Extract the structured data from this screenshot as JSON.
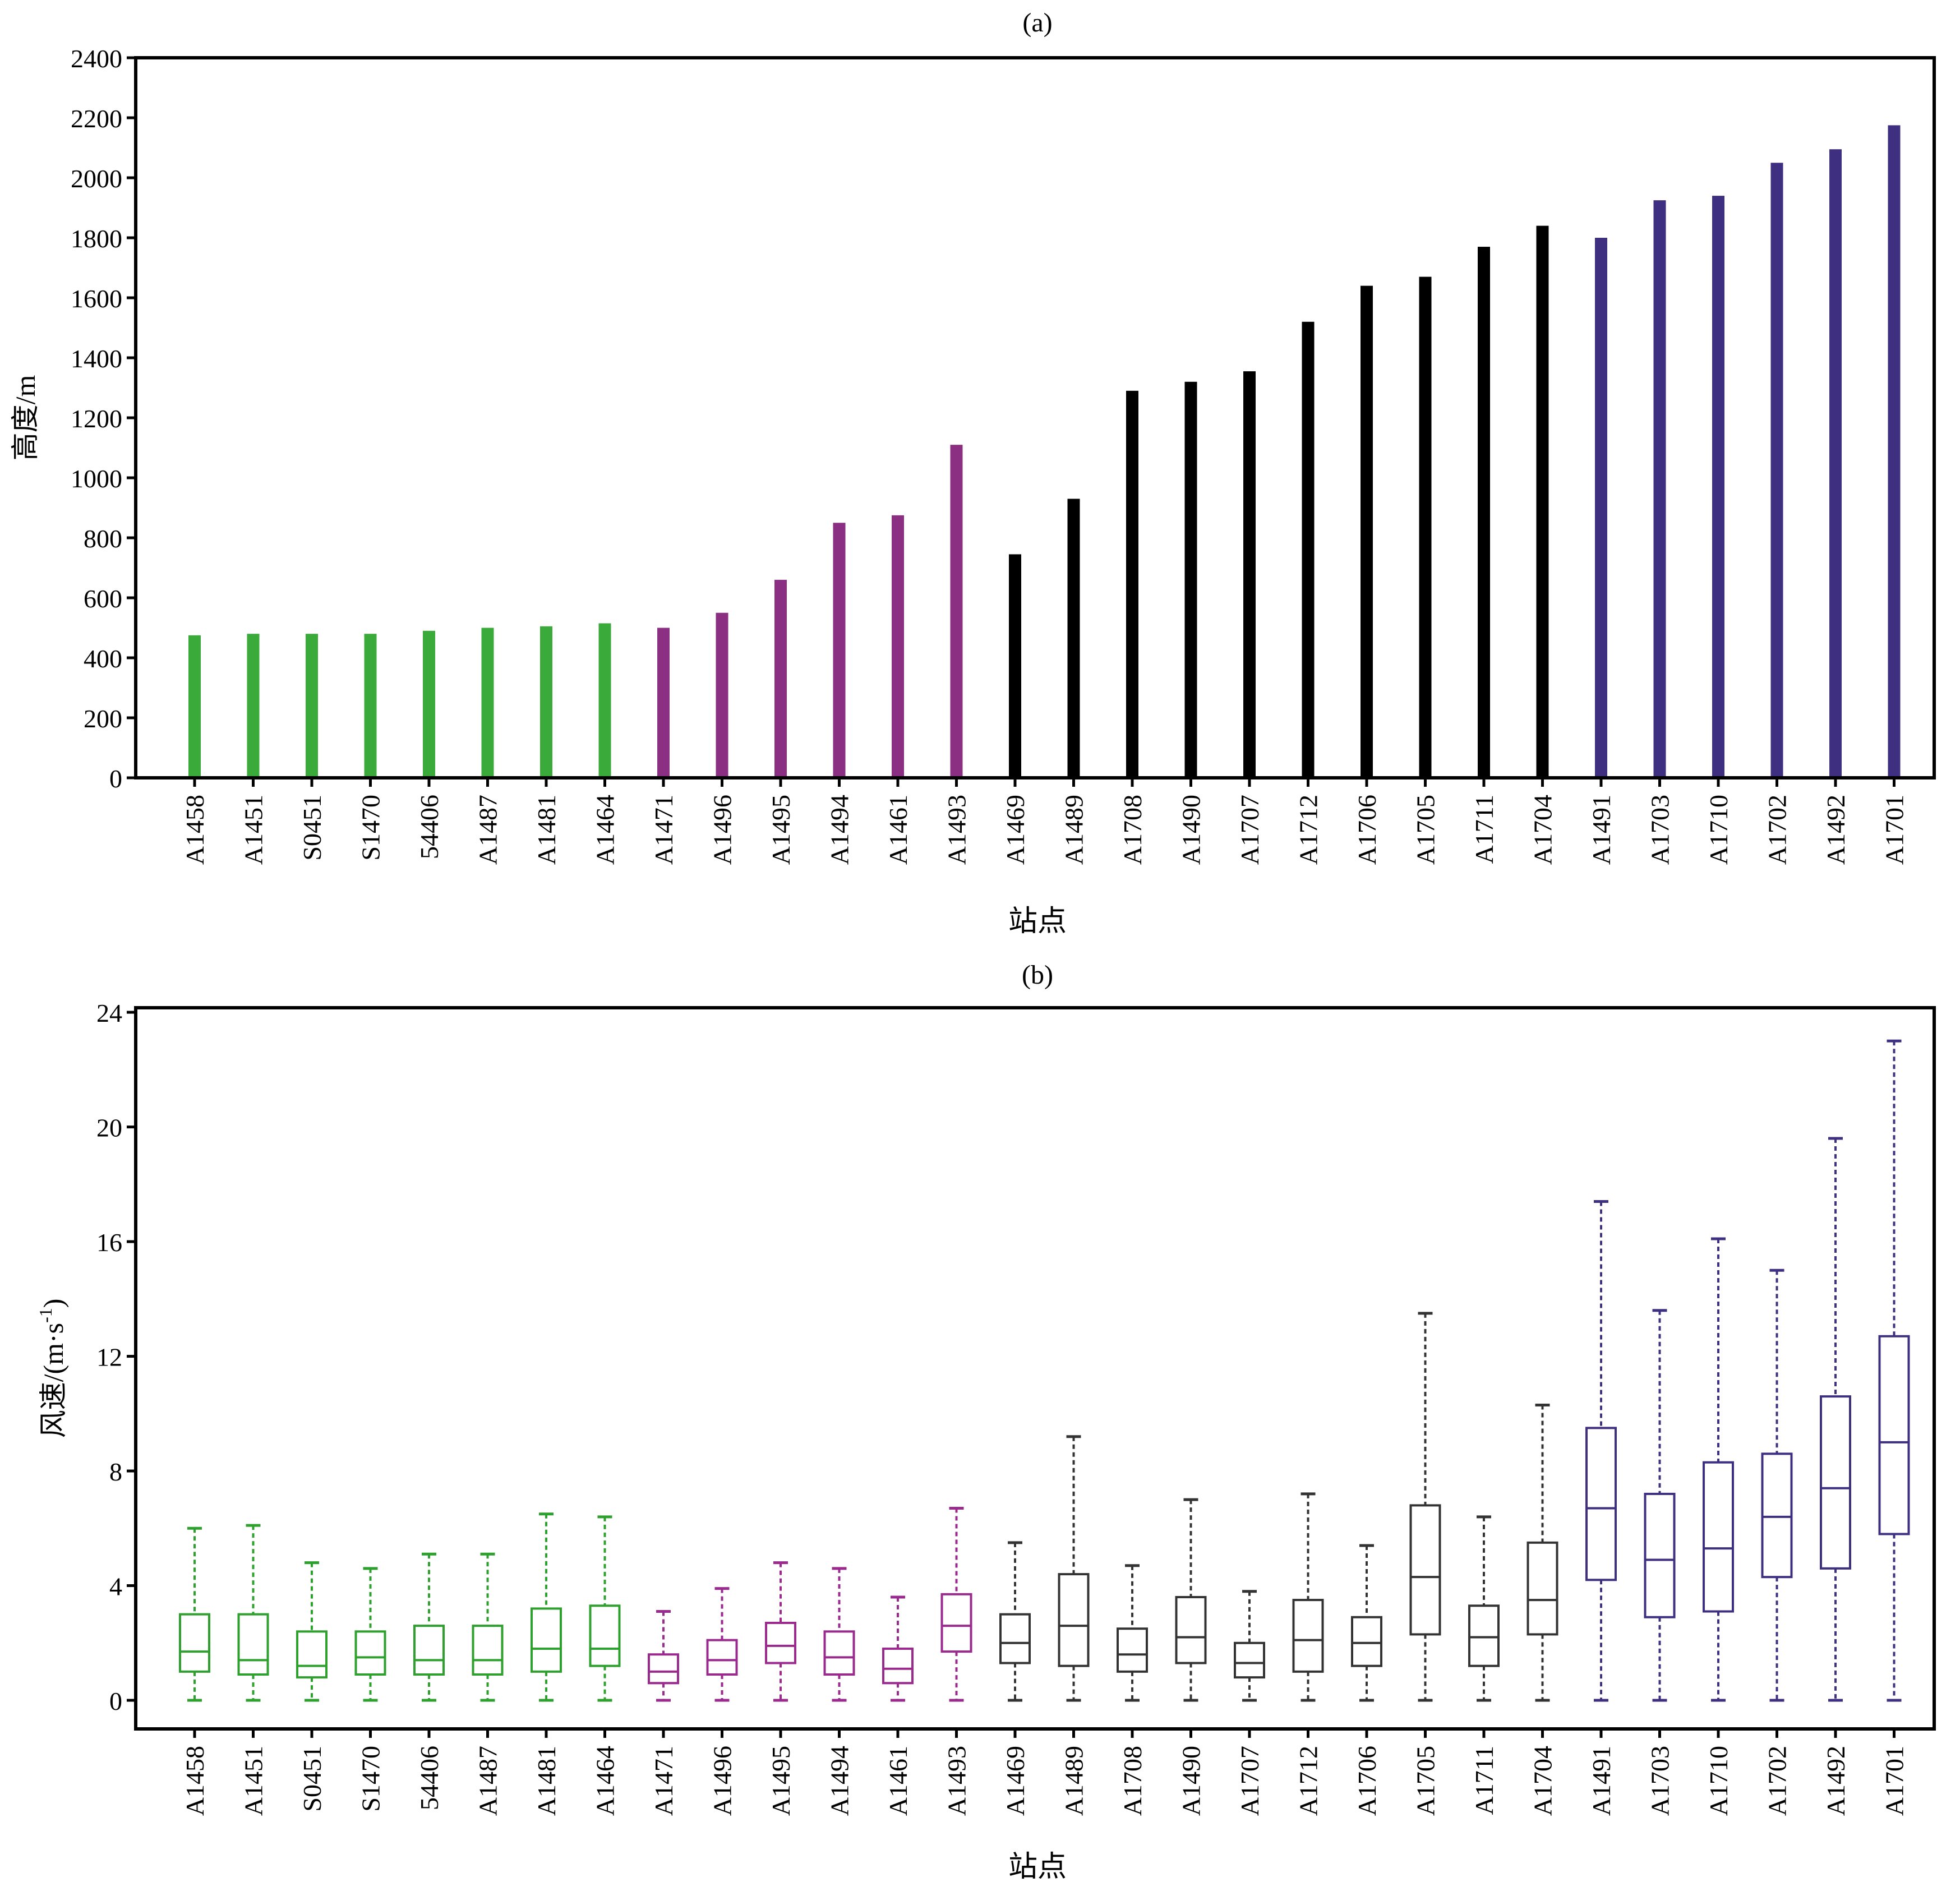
{
  "chart_data": [
    {
      "panel_label": "(a)",
      "type": "bar",
      "xlabel": "站点",
      "ylabel": "高度/m",
      "ylim": [
        0,
        2400
      ],
      "yticks": [
        0,
        200,
        400,
        600,
        800,
        1000,
        1200,
        1400,
        1600,
        1800,
        2000,
        2200,
        2400
      ],
      "grid": false,
      "categories": [
        "A1458",
        "A1451",
        "S0451",
        "S1470",
        "54406",
        "A1487",
        "A1481",
        "A1464",
        "A1471",
        "A1496",
        "A1495",
        "A1494",
        "A1461",
        "A1493",
        "A1469",
        "A1489",
        "A1708",
        "A1490",
        "A1707",
        "A1712",
        "A1706",
        "A1705",
        "A1711",
        "A1704",
        "A1491",
        "A1703",
        "A1710",
        "A1702",
        "A1492",
        "A1701"
      ],
      "values": [
        475,
        480,
        480,
        480,
        490,
        500,
        505,
        515,
        500,
        550,
        660,
        850,
        875,
        1110,
        745,
        930,
        1290,
        1320,
        1355,
        1520,
        1640,
        1670,
        1770,
        1840,
        1800,
        1925,
        1940,
        2050,
        2095,
        2175
      ],
      "groups": [
        0,
        0,
        0,
        0,
        0,
        0,
        0,
        0,
        1,
        1,
        1,
        1,
        1,
        1,
        2,
        2,
        2,
        2,
        2,
        2,
        2,
        2,
        2,
        2,
        3,
        3,
        3,
        3,
        3,
        3
      ]
    },
    {
      "panel_label": "(b)",
      "type": "box",
      "xlabel": "站点",
      "ylabel": "风速/(m·s",
      "ylabel_sup": "-1",
      "ylabel_close": ")",
      "ylim": [
        -1,
        24
      ],
      "yticks": [
        0,
        4,
        8,
        12,
        16,
        20,
        24
      ],
      "grid": false,
      "categories": [
        "A1458",
        "A1451",
        "S0451",
        "S1470",
        "54406",
        "A1487",
        "A1481",
        "A1464",
        "A1471",
        "A1496",
        "A1495",
        "A1494",
        "A1461",
        "A1493",
        "A1469",
        "A1489",
        "A1708",
        "A1490",
        "A1707",
        "A1712",
        "A1706",
        "A1705",
        "A1711",
        "A1704",
        "A1491",
        "A1703",
        "A1710",
        "A1702",
        "A1492",
        "A1701"
      ],
      "boxes": [
        {
          "min": 0,
          "q1": 1.0,
          "median": 1.7,
          "q3": 3.0,
          "max": 6.0
        },
        {
          "min": 0,
          "q1": 0.9,
          "median": 1.4,
          "q3": 3.0,
          "max": 6.1
        },
        {
          "min": 0,
          "q1": 0.8,
          "median": 1.2,
          "q3": 2.4,
          "max": 4.8
        },
        {
          "min": 0,
          "q1": 0.9,
          "median": 1.5,
          "q3": 2.4,
          "max": 4.6
        },
        {
          "min": 0,
          "q1": 0.9,
          "median": 1.4,
          "q3": 2.6,
          "max": 5.1
        },
        {
          "min": 0,
          "q1": 0.9,
          "median": 1.4,
          "q3": 2.6,
          "max": 5.1
        },
        {
          "min": 0,
          "q1": 1.0,
          "median": 1.8,
          "q3": 3.2,
          "max": 6.5
        },
        {
          "min": 0,
          "q1": 1.2,
          "median": 1.8,
          "q3": 3.3,
          "max": 6.4
        },
        {
          "min": 0,
          "q1": 0.6,
          "median": 1.0,
          "q3": 1.6,
          "max": 3.1
        },
        {
          "min": 0,
          "q1": 0.9,
          "median": 1.4,
          "q3": 2.1,
          "max": 3.9
        },
        {
          "min": 0,
          "q1": 1.3,
          "median": 1.9,
          "q3": 2.7,
          "max": 4.8
        },
        {
          "min": 0,
          "q1": 0.9,
          "median": 1.5,
          "q3": 2.4,
          "max": 4.6
        },
        {
          "min": 0,
          "q1": 0.6,
          "median": 1.1,
          "q3": 1.8,
          "max": 3.6
        },
        {
          "min": 0,
          "q1": 1.7,
          "median": 2.6,
          "q3": 3.7,
          "max": 6.7
        },
        {
          "min": 0,
          "q1": 1.3,
          "median": 2.0,
          "q3": 3.0,
          "max": 5.5
        },
        {
          "min": 0,
          "q1": 1.2,
          "median": 2.6,
          "q3": 4.4,
          "max": 9.2
        },
        {
          "min": 0,
          "q1": 1.0,
          "median": 1.6,
          "q3": 2.5,
          "max": 4.7
        },
        {
          "min": 0,
          "q1": 1.3,
          "median": 2.2,
          "q3": 3.6,
          "max": 7.0
        },
        {
          "min": 0,
          "q1": 0.8,
          "median": 1.3,
          "q3": 2.0,
          "max": 3.8
        },
        {
          "min": 0,
          "q1": 1.0,
          "median": 2.1,
          "q3": 3.5,
          "max": 7.2
        },
        {
          "min": 0,
          "q1": 1.2,
          "median": 2.0,
          "q3": 2.9,
          "max": 5.4
        },
        {
          "min": 0,
          "q1": 2.3,
          "median": 4.3,
          "q3": 6.8,
          "max": 13.5
        },
        {
          "min": 0,
          "q1": 1.2,
          "median": 2.2,
          "q3": 3.3,
          "max": 6.4
        },
        {
          "min": 0,
          "q1": 2.3,
          "median": 3.5,
          "q3": 5.5,
          "max": 10.3
        },
        {
          "min": 0,
          "q1": 4.2,
          "median": 6.7,
          "q3": 9.5,
          "max": 17.4
        },
        {
          "min": 0,
          "q1": 2.9,
          "median": 4.9,
          "q3": 7.2,
          "max": 13.6
        },
        {
          "min": 0,
          "q1": 3.1,
          "median": 5.3,
          "q3": 8.3,
          "max": 16.1
        },
        {
          "min": 0,
          "q1": 4.3,
          "median": 6.4,
          "q3": 8.6,
          "max": 15.0
        },
        {
          "min": 0,
          "q1": 4.6,
          "median": 7.4,
          "q3": 10.6,
          "max": 19.6
        },
        {
          "min": 0,
          "q1": 5.8,
          "median": 9.0,
          "q3": 12.7,
          "max": 23.0
        }
      ],
      "groups": [
        0,
        0,
        0,
        0,
        0,
        0,
        0,
        0,
        1,
        1,
        1,
        1,
        1,
        1,
        2,
        2,
        2,
        2,
        2,
        2,
        2,
        2,
        2,
        2,
        3,
        3,
        3,
        3,
        3,
        3
      ]
    }
  ],
  "colors": {
    "bar_groups": [
      "#3aaa3a",
      "#8b2f82",
      "#000000",
      "#3f2f80"
    ],
    "box_groups": [
      "#2ea02e",
      "#9b2a8e",
      "#333333",
      "#3f2f80"
    ],
    "axis": "#000000"
  }
}
